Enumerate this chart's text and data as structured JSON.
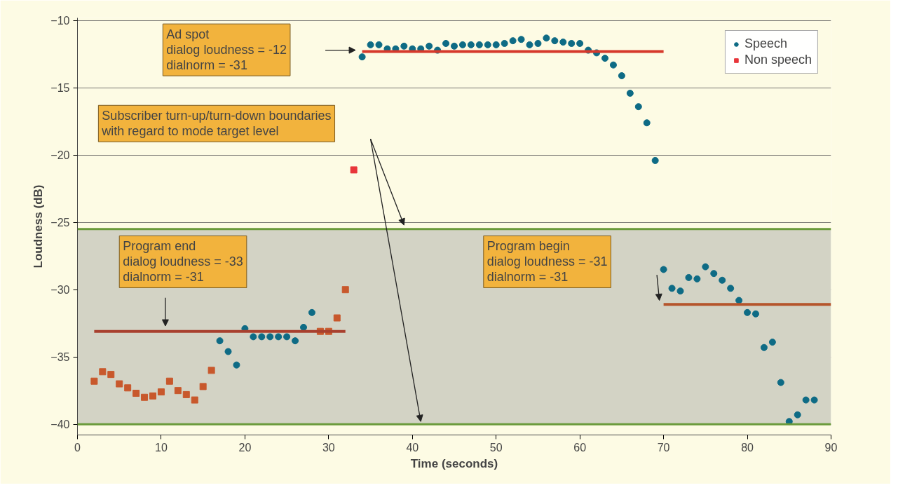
{
  "chart_data": {
    "type": "scatter",
    "xlabel": "Time (seconds)",
    "ylabel": "Loudness (dB)",
    "xlim": [
      0,
      90
    ],
    "ylim": [
      -40.8,
      -9.8
    ],
    "xticks": [
      0,
      10,
      20,
      30,
      40,
      50,
      60,
      70,
      80,
      90
    ],
    "yticks": [
      -40,
      -35,
      -30,
      -25,
      -20,
      -15,
      -10
    ],
    "grid": "y",
    "legend": "top right",
    "series": [
      {
        "name": "Speech",
        "marker": "circle",
        "color": "#0e6b85",
        "x": [
          17,
          18,
          19,
          20,
          21,
          22,
          23,
          24,
          25,
          26,
          27,
          28,
          34,
          35,
          36,
          37,
          38,
          39,
          40,
          41,
          42,
          43,
          44,
          45,
          46,
          47,
          48,
          49,
          50,
          51,
          52,
          53,
          54,
          55,
          56,
          57,
          58,
          59,
          60,
          61,
          62,
          63,
          64,
          65,
          66,
          67,
          68,
          69,
          70,
          71,
          72,
          73,
          74,
          75,
          76,
          77,
          78,
          79,
          80,
          81,
          82,
          83,
          84,
          85,
          86,
          87,
          88
        ],
        "values": [
          -33.8,
          -34.6,
          -35.6,
          -32.9,
          -33.5,
          -33.5,
          -33.5,
          -33.5,
          -33.5,
          -33.8,
          -32.8,
          -31.7,
          -12.7,
          -11.8,
          -11.8,
          -12.1,
          -12.1,
          -11.9,
          -12.1,
          -12.1,
          -11.9,
          -12.2,
          -11.7,
          -11.9,
          -11.8,
          -11.8,
          -11.8,
          -11.8,
          -11.8,
          -11.7,
          -11.5,
          -11.4,
          -11.8,
          -11.7,
          -11.3,
          -11.5,
          -11.6,
          -11.7,
          -11.7,
          -12.2,
          -12.4,
          -12.8,
          -13.3,
          -14.1,
          -15.4,
          -16.4,
          -17.6,
          -20.4,
          -28.5,
          -29.9,
          -30.1,
          -29.1,
          -29.2,
          -28.3,
          -28.8,
          -29.3,
          -29.9,
          -30.8,
          -31.7,
          -31.8,
          -34.3,
          -33.9,
          -36.9,
          -39.8,
          -39.3,
          -38.2,
          -38.2
        ]
      },
      {
        "name": "Non speech",
        "marker": "square",
        "color": "#e8353a",
        "x": [
          2,
          3,
          4,
          5,
          6,
          7,
          8,
          9,
          10,
          11,
          12,
          13,
          14,
          15,
          16,
          29,
          30,
          31,
          32,
          33
        ],
        "values": [
          -36.8,
          -36.1,
          -36.3,
          -37.0,
          -37.3,
          -37.7,
          -38.0,
          -37.9,
          -37.6,
          -36.8,
          -37.5,
          -37.8,
          -38.2,
          -37.2,
          -36.0,
          -33.1,
          -33.1,
          -32.1,
          -30.0,
          -21.1
        ],
        "colors": [
          "#c8582c",
          "#c8582c",
          "#c8582c",
          "#c8582c",
          "#c8582c",
          "#c8582c",
          "#c8582c",
          "#c8582c",
          "#c8582c",
          "#c8582c",
          "#c8582c",
          "#c8582c",
          "#c8582c",
          "#c8582c",
          "#c8582c",
          "#c8582c",
          "#c8582c",
          "#c8582c",
          "#c8582c",
          "#e8353a"
        ]
      },
      {
        "type": "line",
        "color": "#d6392b",
        "x": [
          34,
          70
        ],
        "values": [
          -12.3,
          -12.3
        ]
      },
      {
        "type": "line",
        "color": "#a8402e",
        "x": [
          2,
          32
        ],
        "values": [
          -33.1,
          -33.1
        ]
      },
      {
        "type": "line",
        "color": "#b5552c",
        "x": [
          70,
          90
        ],
        "values": [
          -31.1,
          -31.1
        ]
      }
    ],
    "bands": [
      {
        "axis": "y",
        "from": -40,
        "to": -25.5,
        "color": "#d3d3c5"
      }
    ],
    "ref_lines": [
      {
        "axis": "y",
        "value": -25.5,
        "color": "#6a9a3a"
      },
      {
        "axis": "y",
        "value": -40,
        "color": "#6a9a3a"
      }
    ],
    "annotations": [
      "Ad spot\ndialog loudness = -12\ndialnorm = -31",
      "Subscriber turn-up/turn-down boundaries\nwith regard to mode target level",
      "Program end\ndialog loudness = -33\ndialnorm = -31",
      "Program begin\ndialog loudness = -31\ndialnorm = -31"
    ]
  }
}
